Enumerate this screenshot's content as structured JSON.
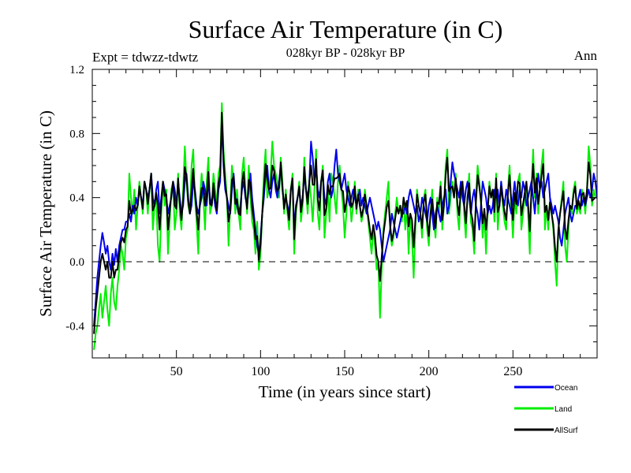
{
  "chart_data": {
    "type": "line",
    "title": "Surface Air Temperature (in C)",
    "subtitle": "028kyr BP - 028kyr BP",
    "experiment": "Expt = tdwzz-tdwtz",
    "season": "Ann",
    "xlabel": "Time (in years since start)",
    "ylabel": "Surface Air Temperature (in C)",
    "xlim": [
      0,
      300
    ],
    "ylim": [
      -0.6,
      1.2
    ],
    "xticks": [
      50,
      100,
      150,
      200,
      250
    ],
    "xtick_labels": [
      "50",
      "100",
      "150",
      "200",
      "250"
    ],
    "yticks": [
      -0.4,
      0.0,
      0.4,
      0.8,
      1.2
    ],
    "ytick_labels": [
      "-0.4",
      "0.0",
      "0.4",
      "0.8",
      "1.2"
    ],
    "reference_line": 0.0,
    "series": [
      {
        "name": "Land",
        "color": "#00ee00",
        "values": [
          -0.55,
          -0.45,
          -0.4,
          -0.3,
          -0.2,
          -0.35,
          -0.25,
          -0.15,
          -0.3,
          -0.4,
          -0.2,
          -0.1,
          -0.25,
          -0.3,
          -0.15,
          -0.05,
          0.1,
          0.05,
          -0.05,
          0.15,
          0.2,
          0.55,
          0.4,
          0.3,
          0.45,
          0.2,
          0.35,
          0.5,
          0.4,
          0.3,
          0.5,
          0.45,
          0.3,
          0.45,
          0.55,
          0.2,
          0.35,
          0.4,
          0.1,
          0.0,
          0.3,
          0.5,
          0.35,
          0.45,
          0.05,
          0.25,
          0.45,
          0.5,
          0.2,
          0.3,
          0.55,
          0.3,
          0.2,
          0.45,
          0.72,
          0.5,
          0.35,
          0.3,
          0.6,
          0.7,
          0.4,
          0.25,
          0.05,
          0.4,
          0.55,
          0.4,
          0.2,
          0.5,
          0.65,
          0.3,
          0.35,
          0.55,
          0.45,
          0.35,
          0.55,
          0.6,
          0.99,
          0.7,
          0.55,
          0.4,
          0.1,
          0.35,
          0.6,
          0.5,
          0.3,
          0.45,
          0.3,
          0.2,
          0.55,
          0.65,
          0.45,
          0.3,
          0.6,
          0.4,
          0.25,
          0.2,
          0.05,
          0.25,
          -0.05,
          0.05,
          0.3,
          0.55,
          0.7,
          0.4,
          0.45,
          0.55,
          0.75,
          0.6,
          0.55,
          0.5,
          0.4,
          0.65,
          0.5,
          0.3,
          0.45,
          0.3,
          0.2,
          0.45,
          0.55,
          0.05,
          0.3,
          0.4,
          0.5,
          0.25,
          0.35,
          0.65,
          0.45,
          0.3,
          0.5,
          0.4,
          0.25,
          0.45,
          0.7,
          0.3,
          0.2,
          0.5,
          0.6,
          0.15,
          0.3,
          0.45,
          0.25,
          0.55,
          0.5,
          0.4,
          0.3,
          0.5,
          0.6,
          0.45,
          0.35,
          0.15,
          0.3,
          0.5,
          0.4,
          0.25,
          0.35,
          0.5,
          0.3,
          0.45,
          0.35,
          0.25,
          0.3,
          0.45,
          0.35,
          0.25,
          0.15,
          0.05,
          0.2,
          0.1,
          -0.05,
          0.0,
          -0.35,
          -0.05,
          0.2,
          0.3,
          0.4,
          0.5,
          0.2,
          0.1,
          0.15,
          0.3,
          0.4,
          0.3,
          0.35,
          0.25,
          0.4,
          0.2,
          0.35,
          0.05,
          0.3,
          0.15,
          -0.1,
          0.2,
          0.45,
          0.35,
          0.3,
          0.15,
          0.4,
          0.45,
          0.2,
          0.1,
          0.3,
          0.45,
          0.25,
          0.15,
          0.4,
          0.3,
          0.5,
          0.2,
          0.35,
          0.6,
          0.7,
          0.3,
          0.4,
          0.5,
          0.4,
          0.55,
          0.3,
          0.2,
          0.45,
          0.5,
          0.3,
          0.15,
          0.4,
          0.55,
          0.25,
          0.2,
          0.05,
          0.4,
          0.6,
          0.5,
          0.35,
          0.15,
          0.3,
          0.05,
          0.3,
          0.5,
          0.4,
          0.45,
          0.25,
          0.55,
          0.2,
          0.35,
          0.5,
          0.35,
          0.25,
          0.2,
          0.45,
          0.6,
          0.35,
          0.15,
          0.4,
          0.3,
          0.5,
          0.55,
          0.2,
          0.3,
          0.4,
          0.5,
          0.3,
          0.05,
          0.45,
          0.7,
          0.4,
          0.55,
          0.3,
          0.45,
          0.6,
          0.7,
          0.2,
          0.35,
          0.2,
          0.4,
          0.3,
          0.2,
          0.0,
          -0.15,
          0.2,
          0.3,
          0.4,
          0.5,
          0.1,
          0.0,
          0.2,
          0.35,
          0.3,
          0.45,
          0.5,
          0.3,
          0.35,
          0.3,
          0.45,
          0.4,
          0.3,
          0.45,
          0.72,
          0.6,
          0.35,
          0.45,
          0.4
        ]
      },
      {
        "name": "Ocean",
        "color": "#0000ee",
        "values": [
          -0.4,
          -0.25,
          -0.1,
          0.0,
          0.1,
          0.18,
          0.12,
          0.05,
          0.1,
          0.0,
          -0.05,
          0.05,
          -0.02,
          0.08,
          0.0,
          0.1,
          0.15,
          0.2,
          0.2,
          0.25,
          0.25,
          0.3,
          0.25,
          0.35,
          0.3,
          0.4,
          0.35,
          0.45,
          0.4,
          0.35,
          0.5,
          0.45,
          0.4,
          0.45,
          0.55,
          0.4,
          0.35,
          0.45,
          0.5,
          0.3,
          0.4,
          0.5,
          0.45,
          0.4,
          0.3,
          0.35,
          0.4,
          0.5,
          0.45,
          0.35,
          0.5,
          0.4,
          0.3,
          0.35,
          0.5,
          0.55,
          0.4,
          0.3,
          0.35,
          0.5,
          0.45,
          0.35,
          0.3,
          0.35,
          0.4,
          0.5,
          0.45,
          0.35,
          0.5,
          0.4,
          0.35,
          0.45,
          0.35,
          0.3,
          0.45,
          0.5,
          0.9,
          0.6,
          0.45,
          0.4,
          0.35,
          0.3,
          0.45,
          0.55,
          0.4,
          0.35,
          0.3,
          0.35,
          0.45,
          0.5,
          0.4,
          0.35,
          0.45,
          0.55,
          0.4,
          0.3,
          0.2,
          0.1,
          0.05,
          0.15,
          0.3,
          0.4,
          0.55,
          0.6,
          0.45,
          0.4,
          0.5,
          0.55,
          0.45,
          0.4,
          0.5,
          0.6,
          0.45,
          0.35,
          0.4,
          0.35,
          0.3,
          0.45,
          0.5,
          0.2,
          0.35,
          0.4,
          0.45,
          0.35,
          0.4,
          0.55,
          0.45,
          0.4,
          0.5,
          0.75,
          0.65,
          0.5,
          0.6,
          0.45,
          0.4,
          0.5,
          0.55,
          0.4,
          0.35,
          0.5,
          0.55,
          0.4,
          0.45,
          0.6,
          0.7,
          0.55,
          0.5,
          0.45,
          0.5,
          0.55,
          0.45,
          0.4,
          0.35,
          0.4,
          0.45,
          0.4,
          0.35,
          0.4,
          0.45,
          0.35,
          0.4,
          0.35,
          0.3,
          0.35,
          0.4,
          0.35,
          0.3,
          0.25,
          0.2,
          0.25,
          0.2,
          0.1,
          0.0,
          0.05,
          0.1,
          0.15,
          0.2,
          0.3,
          0.25,
          0.2,
          0.15,
          0.2,
          0.25,
          0.3,
          0.3,
          0.35,
          0.3,
          0.4,
          0.45,
          0.4,
          0.35,
          0.3,
          0.35,
          0.25,
          0.3,
          0.4,
          0.35,
          0.3,
          0.25,
          0.35,
          0.4,
          0.3,
          0.2,
          0.3,
          0.35,
          0.3,
          0.25,
          0.35,
          0.4,
          0.45,
          0.3,
          0.35,
          0.5,
          0.62,
          0.55,
          0.5,
          0.45,
          0.4,
          0.5,
          0.4,
          0.35,
          0.45,
          0.5,
          0.4,
          0.3,
          0.4,
          0.45,
          0.35,
          0.3,
          0.2,
          0.35,
          0.5,
          0.45,
          0.4,
          0.3,
          0.35,
          0.3,
          0.35,
          0.45,
          0.4,
          0.45,
          0.35,
          0.5,
          0.4,
          0.35,
          0.45,
          0.4,
          0.35,
          0.3,
          0.4,
          0.5,
          0.4,
          0.35,
          0.45,
          0.4,
          0.5,
          0.45,
          0.35,
          0.4,
          0.45,
          0.5,
          0.4,
          0.3,
          0.45,
          0.55,
          0.45,
          0.5,
          0.4,
          0.45,
          0.5,
          0.55,
          0.4,
          0.35,
          0.3,
          0.35,
          0.3,
          0.25,
          0.15,
          0.1,
          0.2,
          0.3,
          0.35,
          0.4,
          0.3,
          0.25,
          0.3,
          0.35,
          0.35,
          0.4,
          0.45,
          0.35,
          0.4,
          0.35,
          0.4,
          0.45,
          0.4,
          0.45,
          0.55,
          0.5,
          0.4,
          0.35,
          0.4
        ]
      },
      {
        "name": "AllSurf",
        "color": "#000000",
        "values": [
          -0.45,
          -0.3,
          -0.2,
          -0.1,
          0.0,
          0.05,
          0.0,
          -0.05,
          0.0,
          -0.1,
          -0.1,
          0.0,
          -0.1,
          -0.05,
          -0.05,
          0.05,
          0.12,
          0.15,
          0.12,
          0.2,
          0.22,
          0.38,
          0.3,
          0.32,
          0.35,
          0.32,
          0.35,
          0.47,
          0.4,
          0.33,
          0.5,
          0.45,
          0.36,
          0.45,
          0.55,
          0.32,
          0.35,
          0.43,
          0.35,
          0.2,
          0.36,
          0.5,
          0.41,
          0.42,
          0.2,
          0.31,
          0.42,
          0.5,
          0.35,
          0.33,
          0.52,
          0.36,
          0.26,
          0.39,
          0.59,
          0.53,
          0.38,
          0.3,
          0.45,
          0.58,
          0.43,
          0.31,
          0.2,
          0.37,
          0.46,
          0.46,
          0.35,
          0.41,
          0.56,
          0.36,
          0.35,
          0.49,
          0.39,
          0.32,
          0.49,
          0.54,
          0.93,
          0.64,
          0.49,
          0.4,
          0.25,
          0.32,
          0.51,
          0.53,
          0.36,
          0.39,
          0.3,
          0.29,
          0.49,
          0.56,
          0.42,
          0.33,
          0.51,
          0.49,
          0.34,
          0.26,
          0.14,
          0.16,
          0.01,
          0.11,
          0.3,
          0.46,
          0.61,
          0.52,
          0.45,
          0.46,
          0.6,
          0.57,
          0.49,
          0.44,
          0.46,
          0.62,
          0.47,
          0.33,
          0.42,
          0.33,
          0.26,
          0.45,
          0.52,
          0.14,
          0.33,
          0.4,
          0.47,
          0.31,
          0.38,
          0.59,
          0.45,
          0.36,
          0.5,
          0.6,
          0.48,
          0.48,
          0.64,
          0.39,
          0.32,
          0.5,
          0.57,
          0.29,
          0.33,
          0.48,
          0.42,
          0.47,
          0.47,
          0.52,
          0.52,
          0.53,
          0.55,
          0.45,
          0.44,
          0.31,
          0.37,
          0.47,
          0.43,
          0.34,
          0.37,
          0.47,
          0.33,
          0.42,
          0.35,
          0.28,
          0.33,
          0.42,
          0.35,
          0.28,
          0.2,
          0.14,
          0.23,
          0.16,
          0.04,
          0.0,
          -0.12,
          0.03,
          0.17,
          0.25,
          0.34,
          0.38,
          0.23,
          0.13,
          0.18,
          0.27,
          0.34,
          0.3,
          0.35,
          0.28,
          0.4,
          0.34,
          0.38,
          0.22,
          0.3,
          0.26,
          0.09,
          0.26,
          0.42,
          0.35,
          0.3,
          0.21,
          0.37,
          0.42,
          0.26,
          0.16,
          0.3,
          0.39,
          0.28,
          0.21,
          0.37,
          0.36,
          0.47,
          0.26,
          0.35,
          0.54,
          0.65,
          0.44,
          0.46,
          0.47,
          0.4,
          0.52,
          0.36,
          0.29,
          0.45,
          0.5,
          0.36,
          0.24,
          0.4,
          0.49,
          0.31,
          0.26,
          0.13,
          0.37,
          0.54,
          0.47,
          0.38,
          0.24,
          0.33,
          0.2,
          0.33,
          0.47,
          0.4,
          0.45,
          0.31,
          0.52,
          0.31,
          0.35,
          0.47,
          0.38,
          0.31,
          0.26,
          0.42,
          0.54,
          0.38,
          0.26,
          0.43,
          0.36,
          0.5,
          0.49,
          0.29,
          0.36,
          0.43,
          0.5,
          0.36,
          0.19,
          0.45,
          0.61,
          0.43,
          0.52,
          0.36,
          0.45,
          0.54,
          0.61,
          0.31,
          0.35,
          0.26,
          0.37,
          0.3,
          0.23,
          0.09,
          0.0,
          0.2,
          0.3,
          0.37,
          0.44,
          0.21,
          0.14,
          0.26,
          0.35,
          0.33,
          0.42,
          0.47,
          0.33,
          0.38,
          0.33,
          0.42,
          0.43,
          0.36,
          0.45,
          0.62,
          0.54,
          0.38,
          0.39,
          0.4
        ]
      }
    ],
    "legend_position": "bottom-right",
    "legend_order": [
      "Ocean",
      "Land",
      "AllSurf"
    ]
  }
}
